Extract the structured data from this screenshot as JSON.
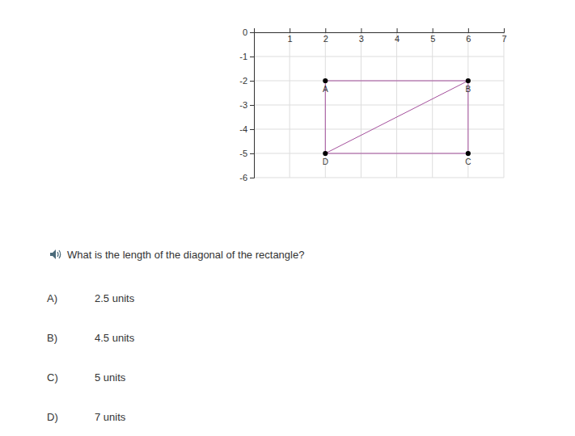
{
  "chart_data": {
    "type": "scatter",
    "x": [
      2,
      6,
      6,
      2
    ],
    "values": [
      -2,
      -2,
      -5,
      -5
    ],
    "point_labels": [
      "A",
      "B",
      "C",
      "D"
    ],
    "diagonal": [
      "D",
      "B"
    ],
    "color": "#a4509c",
    "marker": "circle",
    "xlim": [
      0,
      7
    ],
    "xticks": [
      1,
      2,
      3,
      4,
      5,
      6,
      7
    ],
    "ylim": [
      -6,
      0
    ],
    "yticks": [
      0,
      -1,
      -2,
      -3,
      -4,
      -5,
      -6
    ],
    "grid": true
  },
  "question": "What is the length of the diagonal of the rectangle?",
  "choices": [
    {
      "letter": "A)",
      "text": "2.5 units"
    },
    {
      "letter": "B)",
      "text": "4.5 units"
    },
    {
      "letter": "C)",
      "text": "5 units"
    },
    {
      "letter": "D)",
      "text": "7 units"
    }
  ]
}
